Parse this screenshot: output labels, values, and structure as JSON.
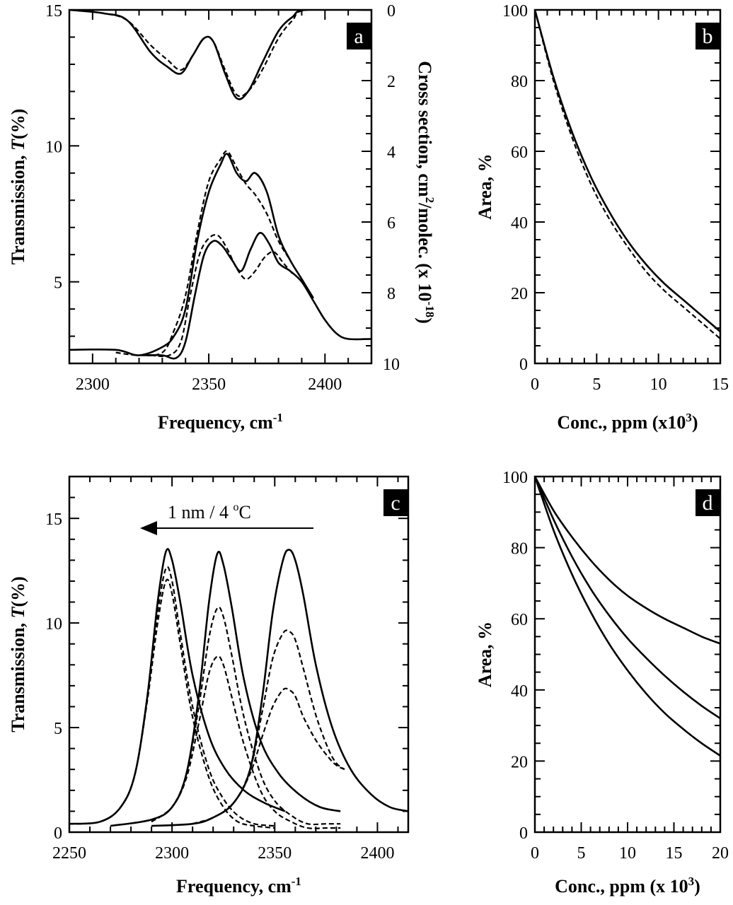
{
  "chart_data": [
    {
      "panel": "a",
      "type": "line",
      "panel_label": "a",
      "xlabel": "Frequency, cm",
      "xlabel_sup": "-1",
      "ylabel_left": "Transmission, T(%)",
      "ylabel_left_parts": [
        "Transmission, ",
        "T",
        "(%)"
      ],
      "ylabel_right_parts": [
        "Cross section, cm",
        "2",
        "/molec. (x 10",
        "-18",
        ")"
      ],
      "xlim": [
        2290,
        2420
      ],
      "ylim": [
        2,
        15
      ],
      "ylim_right": [
        0,
        10
      ],
      "xticks": [
        2300,
        2350,
        2400
      ],
      "yticks": [
        5,
        10,
        15
      ],
      "yticks_right": [
        0,
        2,
        4,
        6,
        8,
        10
      ],
      "series": [
        {
          "name": "cross-section-solid",
          "axis": "right",
          "style": "solid",
          "x": [
            2290,
            2305,
            2315,
            2325,
            2332,
            2338,
            2343,
            2348,
            2352,
            2357,
            2362,
            2367,
            2373,
            2380,
            2386,
            2392,
            2420
          ],
          "y": [
            0,
            0.1,
            0.3,
            1.2,
            1.6,
            1.8,
            1.3,
            0.8,
            0.9,
            1.8,
            2.5,
            2.3,
            1.5,
            0.6,
            0.2,
            0.0,
            0.0
          ]
        },
        {
          "name": "cross-section-dashed",
          "axis": "right",
          "style": "dashed",
          "x": [
            2290,
            2305,
            2315,
            2325,
            2332,
            2338,
            2343,
            2348,
            2352,
            2357,
            2362,
            2367,
            2373,
            2380,
            2386,
            2392,
            2420
          ],
          "y": [
            0,
            0.1,
            0.3,
            1.0,
            1.4,
            1.7,
            1.3,
            0.8,
            0.9,
            1.7,
            2.4,
            2.3,
            1.7,
            0.8,
            0.3,
            0.0,
            0.0
          ]
        },
        {
          "name": "transmission-upper-solid",
          "axis": "left",
          "style": "solid",
          "x": [
            2290,
            2310,
            2320,
            2330,
            2335,
            2340,
            2345,
            2350,
            2355,
            2358,
            2362,
            2366,
            2370,
            2375,
            2380,
            2385,
            2390,
            2395
          ],
          "y": [
            2.5,
            2.5,
            2.3,
            2.6,
            3.0,
            4.0,
            6.5,
            8.3,
            9.3,
            9.7,
            9.0,
            8.7,
            9.0,
            8.3,
            6.7,
            5.8,
            5.1,
            4.4
          ]
        },
        {
          "name": "transmission-upper-dashed",
          "axis": "left",
          "style": "dashed",
          "x": [
            2310,
            2320,
            2330,
            2335,
            2340,
            2345,
            2350,
            2355,
            2358,
            2362,
            2366,
            2370,
            2375,
            2380,
            2385
          ],
          "y": [
            2.4,
            2.3,
            2.4,
            3.2,
            4.5,
            6.8,
            8.7,
            9.5,
            9.8,
            9.2,
            8.6,
            8.2,
            7.5,
            6.5,
            5.8
          ]
        },
        {
          "name": "transmission-lower-solid",
          "axis": "left",
          "style": "solid",
          "x": [
            2322,
            2330,
            2336,
            2340,
            2344,
            2348,
            2352,
            2356,
            2360,
            2364,
            2368,
            2372,
            2376,
            2380,
            2385,
            2390,
            2395,
            2400,
            2405,
            2410,
            2420
          ],
          "y": [
            2.3,
            2.3,
            2.2,
            2.8,
            4.5,
            6.0,
            6.5,
            6.3,
            5.8,
            5.4,
            6.2,
            6.8,
            6.4,
            5.7,
            5.4,
            5.0,
            4.3,
            3.6,
            3.1,
            2.9,
            2.9
          ]
        },
        {
          "name": "transmission-lower-dashed",
          "axis": "left",
          "style": "dashed",
          "x": [
            2325,
            2333,
            2338,
            2342,
            2346,
            2350,
            2354,
            2358,
            2362,
            2366,
            2370,
            2374,
            2378,
            2382,
            2386
          ],
          "y": [
            2.3,
            2.3,
            2.8,
            4.5,
            6.0,
            6.6,
            6.7,
            6.2,
            5.5,
            5.1,
            5.4,
            5.9,
            6.1,
            5.7,
            5.3
          ]
        }
      ]
    },
    {
      "panel": "b",
      "type": "line",
      "panel_label": "b",
      "xlabel": "Conc., ppm (x10",
      "xlabel_sup": "3",
      "xlabel_end": ")",
      "ylabel": "Area, %",
      "xlim": [
        0,
        15
      ],
      "ylim": [
        0,
        100
      ],
      "xticks": [
        0,
        5,
        10,
        15
      ],
      "yticks": [
        0,
        20,
        40,
        60,
        80,
        100
      ],
      "series": [
        {
          "name": "area-solid",
          "style": "solid",
          "x": [
            0,
            1.5,
            3,
            4.5,
            6,
            7.5,
            9,
            10.5,
            12,
            13.5,
            15
          ],
          "y": [
            100,
            81,
            65.5,
            53,
            43,
            34.7,
            28,
            22.5,
            18,
            13.5,
            9
          ]
        },
        {
          "name": "area-dashed",
          "style": "dashed",
          "x": [
            0,
            1.5,
            3,
            4.5,
            6,
            7.5,
            9,
            10.5,
            12,
            13.5,
            15
          ],
          "y": [
            100,
            80,
            64,
            51,
            41,
            33,
            26,
            20.5,
            16,
            11.5,
            7
          ]
        }
      ]
    },
    {
      "panel": "c",
      "type": "line",
      "panel_label": "c",
      "xlabel": "Frequency, cm",
      "xlabel_sup": "-1",
      "ylabel_parts": [
        "Transmission, ",
        "T",
        "(%)"
      ],
      "annotation_parts": [
        "1 nm / 4 ",
        "o",
        "C"
      ],
      "xlim": [
        2250,
        2415
      ],
      "ylim": [
        0,
        17
      ],
      "xticks": [
        2250,
        2300,
        2350,
        2400
      ],
      "yticks": [
        0,
        5,
        10,
        15
      ],
      "series": [
        {
          "name": "peak1-solid",
          "style": "solid",
          "x": [
            2250,
            2265,
            2275,
            2282,
            2288,
            2293,
            2297,
            2300,
            2304,
            2310,
            2318,
            2326,
            2335,
            2345,
            2355
          ],
          "y": [
            0.4,
            0.5,
            1.2,
            2.8,
            6.5,
            11.0,
            13.4,
            13.0,
            11.0,
            7.5,
            4.6,
            3.0,
            2.0,
            1.4,
            1.0
          ]
        },
        {
          "name": "peak1-dashed-a",
          "style": "dashed",
          "x": [
            2250,
            2265,
            2275,
            2282,
            2288,
            2293,
            2297,
            2300,
            2304,
            2310,
            2318,
            2325,
            2332,
            2340,
            2350
          ],
          "y": [
            0.4,
            0.5,
            1.2,
            2.8,
            6.5,
            10.5,
            12.6,
            12.0,
            9.5,
            6.0,
            3.0,
            1.6,
            0.8,
            0.4,
            0.3
          ]
        },
        {
          "name": "peak1-dashed-b",
          "style": "dashed",
          "x": [
            2250,
            2265,
            2275,
            2282,
            2288,
            2293,
            2297,
            2300,
            2304,
            2310,
            2318,
            2325,
            2332,
            2340,
            2350
          ],
          "y": [
            0.4,
            0.5,
            1.2,
            2.8,
            6.3,
            10.0,
            12.0,
            11.4,
            9.0,
            5.5,
            2.6,
            1.2,
            0.5,
            0.3,
            0.2
          ]
        },
        {
          "name": "peak2-solid",
          "style": "solid",
          "x": [
            2270,
            2290,
            2300,
            2307,
            2313,
            2318,
            2322,
            2325,
            2329,
            2335,
            2343,
            2352,
            2362,
            2372,
            2382
          ],
          "y": [
            0.3,
            0.6,
            1.2,
            2.8,
            6.5,
            11.0,
            13.3,
            12.8,
            10.8,
            7.3,
            4.4,
            2.8,
            1.8,
            1.2,
            1.0
          ]
        },
        {
          "name": "peak2-dashed-a",
          "style": "dashed",
          "x": [
            2290,
            2300,
            2307,
            2313,
            2318,
            2322,
            2325,
            2329,
            2335,
            2343,
            2350,
            2358,
            2366,
            2375,
            2382
          ],
          "y": [
            0.5,
            1.2,
            2.8,
            6.0,
            9.3,
            10.7,
            10.3,
            8.5,
            5.5,
            2.8,
            1.5,
            0.8,
            0.4,
            0.4,
            0.4
          ]
        },
        {
          "name": "peak2-dashed-b",
          "style": "dashed",
          "x": [
            2290,
            2300,
            2307,
            2313,
            2318,
            2322,
            2325,
            2329,
            2335,
            2343,
            2350,
            2358,
            2366,
            2375,
            2382
          ],
          "y": [
            0.5,
            1.2,
            2.6,
            5.2,
            7.6,
            8.4,
            8.0,
            6.5,
            4.2,
            2.0,
            1.0,
            0.5,
            0.2,
            0.2,
            0.2
          ]
        },
        {
          "name": "peak3-solid",
          "style": "solid",
          "x": [
            2290,
            2310,
            2320,
            2330,
            2338,
            2344,
            2349,
            2354,
            2357,
            2360,
            2364,
            2370,
            2378,
            2387,
            2397,
            2406,
            2415
          ],
          "y": [
            0.3,
            0.4,
            0.7,
            1.4,
            3.0,
            6.5,
            10.5,
            13.0,
            13.5,
            13.0,
            11.3,
            8.0,
            5.0,
            3.0,
            1.8,
            1.2,
            1.0
          ]
        },
        {
          "name": "peak3-dashed-a",
          "style": "dashed",
          "x": [
            2310,
            2320,
            2330,
            2338,
            2344,
            2349,
            2354,
            2357,
            2360,
            2364,
            2370,
            2376,
            2380,
            2384
          ],
          "y": [
            0.4,
            0.7,
            1.4,
            3.0,
            5.8,
            8.3,
            9.5,
            9.6,
            9.2,
            7.8,
            5.6,
            4.0,
            3.3,
            3.0
          ]
        },
        {
          "name": "peak3-dashed-b",
          "style": "dashed",
          "x": [
            2310,
            2320,
            2330,
            2338,
            2344,
            2349,
            2354,
            2357,
            2360,
            2364,
            2370,
            2376,
            2380,
            2384
          ],
          "y": [
            0.4,
            0.7,
            1.4,
            2.8,
            4.6,
            6.0,
            6.8,
            6.8,
            6.5,
            5.5,
            4.4,
            3.6,
            3.2,
            3.0
          ]
        }
      ]
    },
    {
      "panel": "d",
      "type": "line",
      "panel_label": "d",
      "xlabel": "Conc., ppm (x 10",
      "xlabel_sup": "3",
      "xlabel_end": ")",
      "ylabel": "Area, %",
      "xlim": [
        0,
        20
      ],
      "ylim": [
        0,
        100
      ],
      "xticks": [
        0,
        5,
        10,
        15,
        20
      ],
      "yticks": [
        0,
        20,
        40,
        60,
        80,
        100
      ],
      "series": [
        {
          "name": "area-curve-top",
          "style": "solid",
          "x": [
            0,
            2,
            4,
            6,
            8,
            10,
            12,
            14,
            16,
            18,
            20
          ],
          "y": [
            100,
            90.5,
            83,
            76.5,
            71,
            66.5,
            63,
            60,
            57.5,
            55,
            53
          ]
        },
        {
          "name": "area-curve-middle",
          "style": "solid",
          "x": [
            0,
            2,
            4,
            6,
            8,
            10,
            12,
            14,
            16,
            18,
            20
          ],
          "y": [
            100,
            88,
            77.5,
            68.5,
            61,
            54.5,
            49,
            44,
            39.5,
            35.5,
            32
          ]
        },
        {
          "name": "area-curve-bottom",
          "style": "solid",
          "x": [
            0,
            2,
            4,
            6,
            8,
            10,
            12,
            14,
            16,
            18,
            20
          ],
          "y": [
            100,
            85,
            72.5,
            62,
            53,
            45.5,
            39,
            33.5,
            29,
            25,
            21.5
          ]
        }
      ]
    }
  ]
}
